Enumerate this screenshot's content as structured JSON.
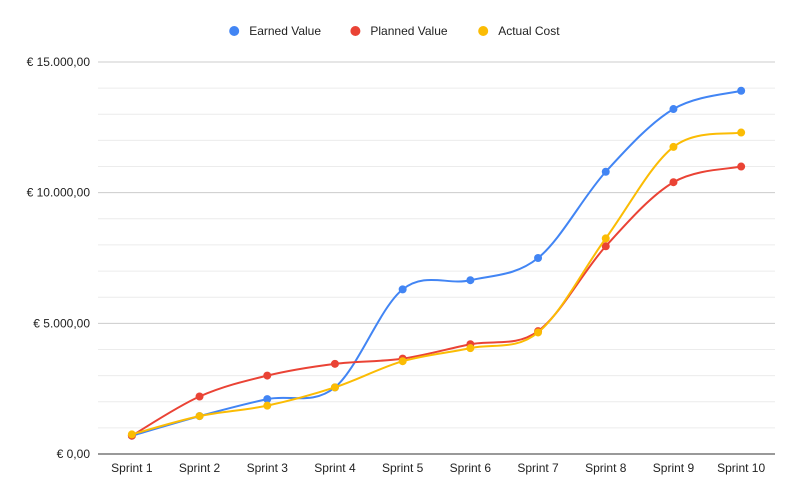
{
  "chart_data": {
    "type": "line",
    "smooth": true,
    "categories": [
      "Sprint 1",
      "Sprint 2",
      "Sprint 3",
      "Sprint 4",
      "Sprint 5",
      "Sprint 6",
      "Sprint 7",
      "Sprint 8",
      "Sprint 9",
      "Sprint 10"
    ],
    "series": [
      {
        "name": "Earned Value",
        "color": "#4285f4",
        "values": [
          700,
          1450,
          2100,
          2550,
          6300,
          6650,
          7500,
          10800,
          13200,
          13900
        ]
      },
      {
        "name": "Planned Value",
        "color": "#ea4335",
        "values": [
          700,
          2200,
          3000,
          3450,
          3650,
          4200,
          4700,
          7950,
          10400,
          11000
        ]
      },
      {
        "name": "Actual Cost",
        "color": "#fbbc04",
        "values": [
          750,
          1450,
          1850,
          2550,
          3550,
          4050,
          4650,
          8250,
          11750,
          12300
        ]
      }
    ],
    "ylim": [
      0,
      15000
    ],
    "yticks": [
      0,
      5000,
      10000,
      15000
    ],
    "ytick_labels": [
      "€ 0,00",
      "€ 5.000,00",
      "€ 10.000,00",
      "€ 15.000,00"
    ],
    "minor_gridline_step": 1000,
    "grid": true,
    "legend_position": "top-center",
    "title": "",
    "xlabel": "",
    "ylabel": ""
  }
}
